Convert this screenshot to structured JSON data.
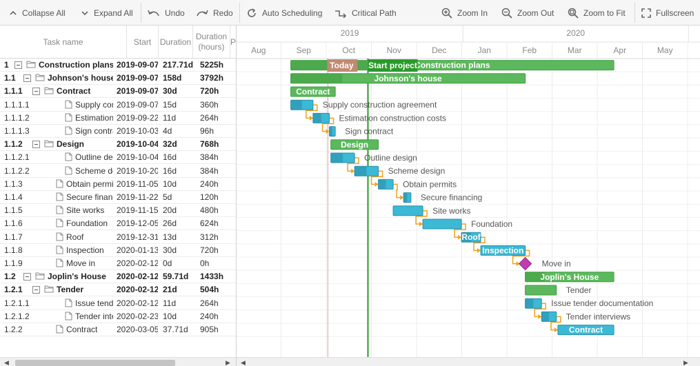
{
  "toolbar": {
    "collapse_all": "Collapse All",
    "expand_all": "Expand All",
    "undo": "Undo",
    "redo": "Redo",
    "auto_scheduling": "Auto Scheduling",
    "critical_path": "Critical Path",
    "zoom_in": "Zoom In",
    "zoom_out": "Zoom Out",
    "zoom_to_fit": "Zoom to Fit",
    "fullscreen": "Fullscreen"
  },
  "grid_header": {
    "task_name": "Task name",
    "start": "Start",
    "duration": "Duration",
    "duration_hours": "Duration (hours)",
    "extra": "P"
  },
  "timeline": {
    "years": [
      "2019",
      "2020"
    ],
    "months": [
      "Aug",
      "Sep",
      "Oct",
      "Nov",
      "Dec",
      "Jan",
      "Feb",
      "Mar",
      "Apr",
      "May"
    ],
    "today_label": "Today",
    "project_start_label": "Start project"
  },
  "tasks": [
    {
      "wbs": "1",
      "name": "Construction plans",
      "start": "2019-09-07",
      "duration": "217.71d",
      "hours": "5225h",
      "level": 0,
      "type": "project",
      "bold": true,
      "bar_label": "Construction plans"
    },
    {
      "wbs": "1.1",
      "name": "Johnson's house",
      "start": "2019-09-07",
      "duration": "158d",
      "hours": "3792h",
      "level": 1,
      "type": "project",
      "bold": true,
      "bar_label": "Johnson's house"
    },
    {
      "wbs": "1.1.1",
      "name": "Contract",
      "start": "2019-09-07",
      "duration": "30d",
      "hours": "720h",
      "level": 2,
      "type": "project",
      "bold": true,
      "bar_label": "Contract"
    },
    {
      "wbs": "1.1.1.1",
      "name": "Supply construction agreement",
      "start": "2019-09-07",
      "duration": "15d",
      "hours": "360h",
      "level": 3,
      "type": "task",
      "bold": false,
      "bar_label": "Supply construction agreement"
    },
    {
      "wbs": "1.1.1.2",
      "name": "Estimation construction costs",
      "start": "2019-09-22",
      "duration": "11d",
      "hours": "264h",
      "level": 3,
      "type": "task",
      "bold": false,
      "bar_label": "Estimation construction costs"
    },
    {
      "wbs": "1.1.1.3",
      "name": "Sign contract",
      "start": "2019-10-03",
      "duration": "4d",
      "hours": "96h",
      "level": 3,
      "type": "task",
      "bold": false,
      "bar_label": "Sign contract"
    },
    {
      "wbs": "1.1.2",
      "name": "Design",
      "start": "2019-10-04",
      "duration": "32d",
      "hours": "768h",
      "level": 2,
      "type": "project",
      "bold": true,
      "bar_label": "Design"
    },
    {
      "wbs": "1.1.2.1",
      "name": "Outline design",
      "start": "2019-10-04",
      "duration": "16d",
      "hours": "384h",
      "level": 3,
      "type": "task",
      "bold": false,
      "bar_label": "Outline design"
    },
    {
      "wbs": "1.1.2.2",
      "name": "Scheme design",
      "start": "2019-10-20",
      "duration": "16d",
      "hours": "384h",
      "level": 3,
      "type": "task",
      "bold": false,
      "bar_label": "Scheme design"
    },
    {
      "wbs": "1.1.3",
      "name": "Obtain permits",
      "start": "2019-11-05",
      "duration": "10d",
      "hours": "240h",
      "level": 2,
      "type": "task",
      "bold": false,
      "bar_label": "Obtain permits"
    },
    {
      "wbs": "1.1.4",
      "name": "Secure financing",
      "start": "2019-11-22",
      "duration": "5d",
      "hours": "120h",
      "level": 2,
      "type": "task",
      "bold": false,
      "bar_label": "Secure financing"
    },
    {
      "wbs": "1.1.5",
      "name": "Site works",
      "start": "2019-11-15",
      "duration": "20d",
      "hours": "480h",
      "level": 2,
      "type": "task",
      "bold": false,
      "bar_label": "Site works"
    },
    {
      "wbs": "1.1.6",
      "name": "Foundation",
      "start": "2019-12-05",
      "duration": "26d",
      "hours": "624h",
      "level": 2,
      "type": "task",
      "bold": false,
      "bar_label": "Foundation"
    },
    {
      "wbs": "1.1.7",
      "name": "Roof",
      "start": "2019-12-31",
      "duration": "13d",
      "hours": "312h",
      "level": 2,
      "type": "task",
      "bold": false,
      "bar_label": "Roof"
    },
    {
      "wbs": "1.1.8",
      "name": "Inspection",
      "start": "2020-01-13",
      "duration": "30d",
      "hours": "720h",
      "level": 2,
      "type": "task",
      "bold": false,
      "bar_label": "Inspection"
    },
    {
      "wbs": "1.1.9",
      "name": "Move in",
      "start": "2020-02-12",
      "duration": "0d",
      "hours": "0h",
      "level": 2,
      "type": "milestone",
      "bold": false,
      "bar_label": "Move in"
    },
    {
      "wbs": "1.2",
      "name": "Joplin's House",
      "start": "2020-02-12",
      "duration": "59.71d",
      "hours": "1433h",
      "level": 1,
      "type": "project",
      "bold": true,
      "bar_label": "Joplin's House"
    },
    {
      "wbs": "1.2.1",
      "name": "Tender",
      "start": "2020-02-12",
      "duration": "21d",
      "hours": "504h",
      "level": 2,
      "type": "project",
      "bold": true,
      "bar_label": "Tender"
    },
    {
      "wbs": "1.2.1.1",
      "name": "Issue tender documentation",
      "start": "2020-02-12",
      "duration": "11d",
      "hours": "264h",
      "level": 3,
      "type": "task",
      "bold": false,
      "bar_label": "Issue tender documentation"
    },
    {
      "wbs": "1.2.1.2",
      "name": "Tender interviews",
      "start": "2020-02-23",
      "duration": "10d",
      "hours": "240h",
      "level": 3,
      "type": "task",
      "bold": false,
      "bar_label": "Tender interviews"
    },
    {
      "wbs": "1.2.2",
      "name": "Contract",
      "start": "2020-03-05",
      "duration": "37.71d",
      "hours": "905h",
      "level": 2,
      "type": "task",
      "bold": false,
      "bar_label": "Contract"
    }
  ],
  "colors": {
    "project_bar": "#5cb85c",
    "project_dark": "#3f9e3f",
    "task_bar": "#3cb9d4",
    "task_dark": "#2a8fac",
    "milestone": "#c43cb0",
    "link": "#f0a21c",
    "today_line": "#e4a0a0",
    "project_start_line": "#2a9a2a"
  }
}
